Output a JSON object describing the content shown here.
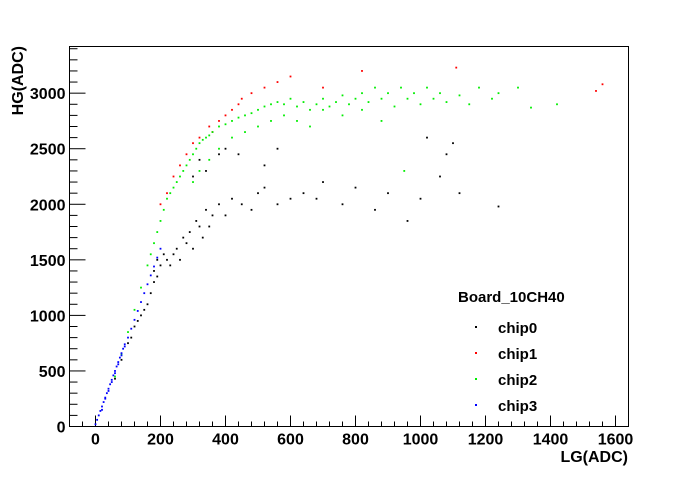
{
  "chart_data": {
    "type": "scatter",
    "xlabel": "LG(ADC)",
    "ylabel": "HG(ADC)",
    "xlim": [
      -80,
      1640
    ],
    "ylim": [
      0,
      3420
    ],
    "x_ticks": [
      0,
      200,
      400,
      600,
      800,
      1000,
      1200,
      1400,
      1600
    ],
    "y_ticks": [
      0,
      500,
      1000,
      1500,
      2000,
      2500,
      3000
    ],
    "grid": false,
    "legend": {
      "title": "Board_10CH40",
      "placement": "bottom-right"
    },
    "series": [
      {
        "name": "chip0",
        "color": "#000000",
        "points": [
          [
            60,
            430
          ],
          [
            80,
            600
          ],
          [
            100,
            750
          ],
          [
            110,
            800
          ],
          [
            120,
            900
          ],
          [
            130,
            950
          ],
          [
            140,
            1000
          ],
          [
            150,
            1050
          ],
          [
            160,
            1100
          ],
          [
            170,
            1200
          ],
          [
            180,
            1300
          ],
          [
            180,
            1400
          ],
          [
            190,
            1350
          ],
          [
            190,
            1500
          ],
          [
            200,
            1450
          ],
          [
            210,
            1550
          ],
          [
            220,
            1500
          ],
          [
            230,
            1450
          ],
          [
            240,
            1550
          ],
          [
            250,
            1600
          ],
          [
            260,
            1500
          ],
          [
            270,
            1700
          ],
          [
            280,
            1650
          ],
          [
            290,
            1750
          ],
          [
            300,
            1600
          ],
          [
            310,
            1850
          ],
          [
            320,
            1800
          ],
          [
            330,
            1700
          ],
          [
            340,
            1950
          ],
          [
            350,
            1800
          ],
          [
            360,
            1900
          ],
          [
            380,
            2000
          ],
          [
            400,
            1900
          ],
          [
            420,
            2050
          ],
          [
            450,
            2000
          ],
          [
            480,
            1950
          ],
          [
            500,
            2100
          ],
          [
            520,
            2150
          ],
          [
            560,
            2000
          ],
          [
            600,
            2050
          ],
          [
            640,
            2100
          ],
          [
            680,
            2050
          ],
          [
            700,
            2200
          ],
          [
            760,
            2000
          ],
          [
            800,
            2150
          ],
          [
            860,
            1950
          ],
          [
            900,
            2100
          ],
          [
            960,
            1850
          ],
          [
            1000,
            2050
          ],
          [
            1060,
            2250
          ],
          [
            1120,
            2100
          ],
          [
            1240,
            1980
          ],
          [
            300,
            2250
          ],
          [
            320,
            2400
          ],
          [
            340,
            2300
          ],
          [
            380,
            2450
          ],
          [
            400,
            2500
          ],
          [
            440,
            2450
          ],
          [
            520,
            2350
          ],
          [
            560,
            2500
          ],
          [
            1020,
            2600
          ],
          [
            1080,
            2450
          ],
          [
            1100,
            2550
          ]
        ]
      },
      {
        "name": "chip1",
        "color": "#ff0000",
        "points": [
          [
            200,
            2000
          ],
          [
            220,
            2100
          ],
          [
            240,
            2250
          ],
          [
            260,
            2350
          ],
          [
            280,
            2450
          ],
          [
            300,
            2550
          ],
          [
            320,
            2600
          ],
          [
            350,
            2700
          ],
          [
            380,
            2750
          ],
          [
            420,
            2850
          ],
          [
            450,
            2950
          ],
          [
            480,
            3000
          ],
          [
            520,
            3050
          ],
          [
            560,
            3100
          ],
          [
            600,
            3150
          ],
          [
            700,
            3050
          ],
          [
            820,
            3200
          ],
          [
            1110,
            3230
          ],
          [
            1540,
            3020
          ],
          [
            1560,
            3080
          ],
          [
            360,
            2650
          ],
          [
            400,
            2800
          ],
          [
            440,
            2900
          ]
        ]
      },
      {
        "name": "chip2",
        "color": "#00ee00",
        "points": [
          [
            60,
            450
          ],
          [
            80,
            650
          ],
          [
            100,
            850
          ],
          [
            120,
            1050
          ],
          [
            140,
            1250
          ],
          [
            160,
            1450
          ],
          [
            170,
            1550
          ],
          [
            180,
            1650
          ],
          [
            190,
            1750
          ],
          [
            200,
            1850
          ],
          [
            210,
            1950
          ],
          [
            220,
            2050
          ],
          [
            230,
            2100
          ],
          [
            240,
            2150
          ],
          [
            250,
            2200
          ],
          [
            260,
            2250
          ],
          [
            270,
            2300
          ],
          [
            280,
            2350
          ],
          [
            290,
            2400
          ],
          [
            300,
            2450
          ],
          [
            310,
            2500
          ],
          [
            320,
            2550
          ],
          [
            330,
            2580
          ],
          [
            340,
            2600
          ],
          [
            350,
            2620
          ],
          [
            360,
            2650
          ],
          [
            380,
            2700
          ],
          [
            400,
            2720
          ],
          [
            420,
            2750
          ],
          [
            440,
            2780
          ],
          [
            460,
            2800
          ],
          [
            480,
            2820
          ],
          [
            500,
            2850
          ],
          [
            520,
            2880
          ],
          [
            540,
            2900
          ],
          [
            560,
            2920
          ],
          [
            580,
            2900
          ],
          [
            600,
            2950
          ],
          [
            620,
            2880
          ],
          [
            640,
            2920
          ],
          [
            660,
            2850
          ],
          [
            680,
            2900
          ],
          [
            700,
            2950
          ],
          [
            720,
            2880
          ],
          [
            740,
            2920
          ],
          [
            760,
            2980
          ],
          [
            780,
            2900
          ],
          [
            800,
            2950
          ],
          [
            820,
            3000
          ],
          [
            840,
            2920
          ],
          [
            860,
            3050
          ],
          [
            880,
            2950
          ],
          [
            900,
            3000
          ],
          [
            920,
            2880
          ],
          [
            940,
            3050
          ],
          [
            960,
            2950
          ],
          [
            980,
            3000
          ],
          [
            1000,
            2900
          ],
          [
            1020,
            3050
          ],
          [
            1040,
            2950
          ],
          [
            1060,
            3000
          ],
          [
            1080,
            2920
          ],
          [
            1120,
            2980
          ],
          [
            1150,
            2900
          ],
          [
            1180,
            3050
          ],
          [
            1220,
            2950
          ],
          [
            1240,
            3000
          ],
          [
            1300,
            3050
          ],
          [
            1340,
            2870
          ],
          [
            1420,
            2900
          ],
          [
            300,
            2200
          ],
          [
            320,
            2300
          ],
          [
            350,
            2400
          ],
          [
            380,
            2500
          ],
          [
            420,
            2600
          ],
          [
            460,
            2650
          ],
          [
            500,
            2700
          ],
          [
            540,
            2750
          ],
          [
            580,
            2800
          ],
          [
            620,
            2750
          ],
          [
            660,
            2700
          ],
          [
            700,
            2850
          ],
          [
            760,
            2800
          ],
          [
            820,
            2850
          ],
          [
            880,
            2750
          ],
          [
            950,
            2300
          ]
        ]
      },
      {
        "name": "chip3",
        "color": "#0000ff",
        "points": [
          [
            0,
            20
          ],
          [
            5,
            60
          ],
          [
            10,
            100
          ],
          [
            15,
            140
          ],
          [
            20,
            180
          ],
          [
            25,
            220
          ],
          [
            30,
            260
          ],
          [
            35,
            300
          ],
          [
            40,
            340
          ],
          [
            45,
            380
          ],
          [
            50,
            420
          ],
          [
            55,
            460
          ],
          [
            60,
            500
          ],
          [
            65,
            540
          ],
          [
            70,
            580
          ],
          [
            75,
            620
          ],
          [
            80,
            660
          ],
          [
            85,
            700
          ],
          [
            90,
            740
          ],
          [
            20,
            150
          ],
          [
            30,
            250
          ],
          [
            40,
            320
          ],
          [
            50,
            400
          ],
          [
            60,
            480
          ],
          [
            70,
            560
          ],
          [
            80,
            640
          ],
          [
            90,
            720
          ],
          [
            100,
            800
          ],
          [
            110,
            880
          ],
          [
            120,
            960
          ],
          [
            130,
            1040
          ],
          [
            140,
            1120
          ],
          [
            150,
            1200
          ],
          [
            160,
            1280
          ],
          [
            170,
            1360
          ],
          [
            180,
            1440
          ],
          [
            190,
            1520
          ],
          [
            200,
            1600
          ]
        ]
      }
    ]
  }
}
